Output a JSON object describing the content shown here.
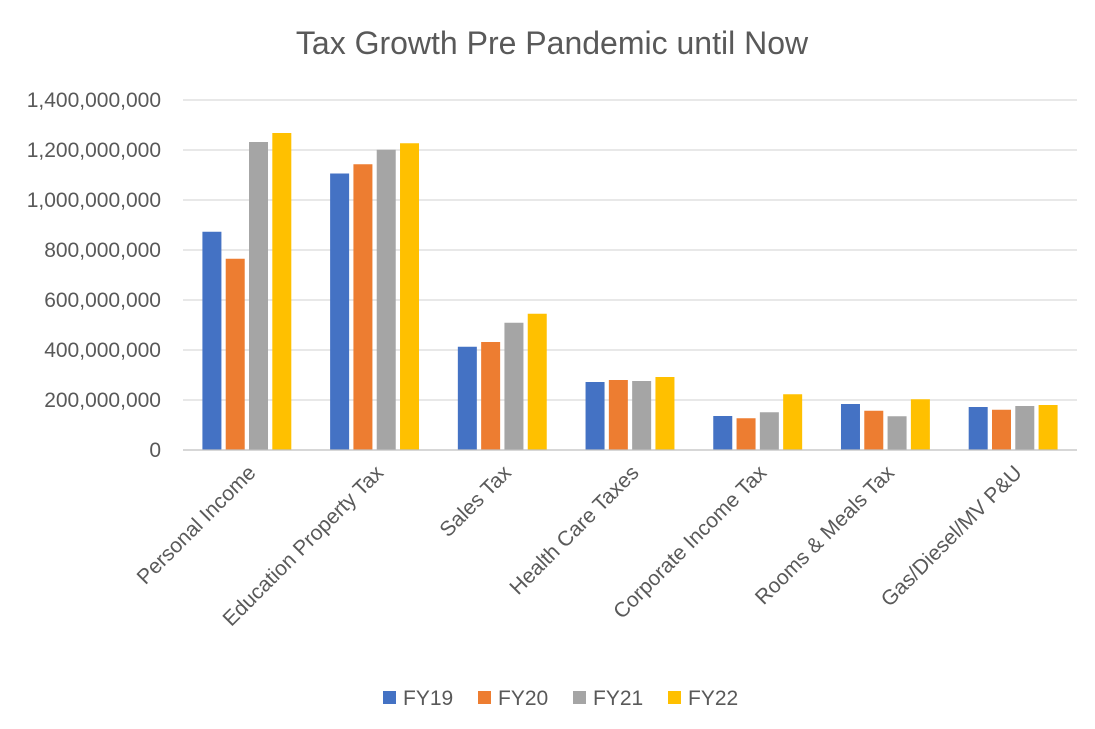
{
  "chart_data": {
    "type": "bar",
    "title": "Tax Growth Pre Pandemic until Now",
    "xlabel": "",
    "ylabel": "",
    "ylim": [
      0,
      1400000000
    ],
    "yticks": [
      0,
      200000000,
      400000000,
      600000000,
      800000000,
      1000000000,
      1200000000,
      1400000000
    ],
    "ytick_labels": [
      "0",
      "200,000,000",
      "400,000,000",
      "600,000,000",
      "800,000,000",
      "1,000,000,000",
      "1,200,000,000",
      "1,400,000,000"
    ],
    "grid": true,
    "legend_position": "bottom",
    "categories": [
      "Personal Income",
      "Education Property Tax",
      "Sales Tax",
      "Health Care Taxes",
      "Corporate Income Tax",
      "Rooms & Meals Tax",
      "Gas/Diesel/MV P&U"
    ],
    "series": [
      {
        "name": "FY19",
        "color": "#4472c4",
        "values": [
          873000000,
          1106000000,
          413000000,
          272000000,
          136000000,
          184000000,
          172000000
        ]
      },
      {
        "name": "FY20",
        "color": "#ed7d31",
        "values": [
          765000000,
          1143000000,
          432000000,
          280000000,
          127000000,
          157000000,
          161000000
        ]
      },
      {
        "name": "FY21",
        "color": "#a5a5a5",
        "values": [
          1232000000,
          1201000000,
          509000000,
          276000000,
          151000000,
          135000000,
          176000000
        ]
      },
      {
        "name": "FY22",
        "color": "#ffc000",
        "values": [
          1268000000,
          1227000000,
          545000000,
          292000000,
          223000000,
          203000000,
          180000000
        ]
      }
    ]
  }
}
